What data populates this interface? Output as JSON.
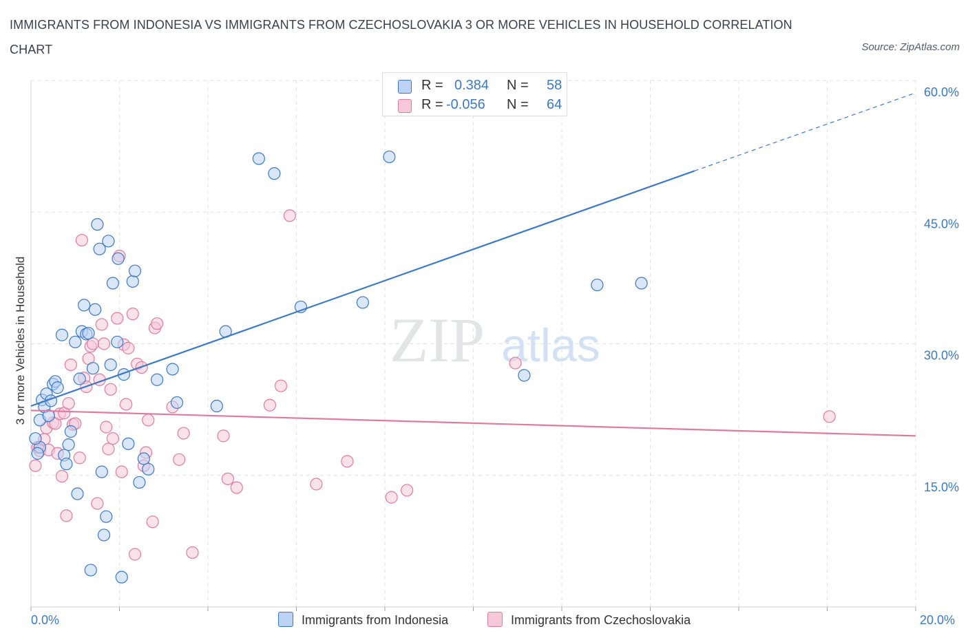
{
  "title": "IMMIGRANTS FROM INDONESIA VS IMMIGRANTS FROM CZECHOSLOVAKIA 3 OR MORE VEHICLES IN HOUSEHOLD CORRELATION CHART",
  "source": "Source: ZipAtlas.com",
  "watermark": {
    "zip": "ZIP",
    "atlas": "atlas"
  },
  "colors": {
    "blue": "#3a78c9",
    "blue_fill": "#bcd3f5",
    "pink": "#e07aa0",
    "pink_fill": "#f7c8d8",
    "grid": "#dfe1e5"
  },
  "legend": {
    "rows": [
      {
        "r_label": "R =",
        "r_value": "0.384",
        "n_label": "N =",
        "n_value": "58"
      },
      {
        "r_label": "R =",
        "r_value": "-0.056",
        "n_label": "N =",
        "n_value": "64"
      }
    ]
  },
  "chart_data": {
    "type": "scatter",
    "title": "IMMIGRANTS FROM INDONESIA VS IMMIGRANTS FROM CZECHOSLOVAKIA 3 OR MORE VEHICLES IN HOUSEHOLD CORRELATION CHART",
    "xlabel": "",
    "ylabel": "3 or more Vehicles in Household",
    "xlim": [
      0,
      20
    ],
    "ylim": [
      0,
      60
    ],
    "x_tick_labels": [
      "0.0%",
      "20.0%"
    ],
    "y_tick_labels": [
      {
        "value": 15,
        "label": "15.0%"
      },
      {
        "value": 30,
        "label": "30.0%"
      },
      {
        "value": 45,
        "label": "45.0%"
      },
      {
        "value": 60,
        "label": "60.0%"
      }
    ],
    "grid": true,
    "legend_position": "top-center",
    "series": [
      {
        "name": "Immigrants from Indonesia",
        "color": "#3a78c9",
        "r": 0.384,
        "n": 58,
        "trend": {
          "x0": 0,
          "y0": 22.9,
          "x1": 15.0,
          "y1": 49.7,
          "dashed_to_x": 20,
          "dashed_to_y": 58.6
        },
        "points": [
          [
            0.2,
            21.3
          ],
          [
            0.25,
            23.6
          ],
          [
            0.3,
            22.8
          ],
          [
            0.35,
            24.3
          ],
          [
            0.4,
            21.8
          ],
          [
            0.45,
            23.5
          ],
          [
            0.5,
            25.4
          ],
          [
            0.55,
            25.7
          ],
          [
            0.6,
            25.0
          ],
          [
            0.7,
            31.0
          ],
          [
            0.75,
            17.3
          ],
          [
            0.8,
            16.3
          ],
          [
            0.85,
            18.5
          ],
          [
            0.9,
            20.0
          ],
          [
            1.0,
            30.2
          ],
          [
            1.05,
            12.9
          ],
          [
            1.1,
            26.0
          ],
          [
            1.15,
            31.4
          ],
          [
            1.2,
            34.4
          ],
          [
            1.25,
            31.1
          ],
          [
            1.3,
            31.2
          ],
          [
            1.35,
            4.2
          ],
          [
            1.4,
            27.2
          ],
          [
            1.45,
            33.9
          ],
          [
            1.5,
            43.6
          ],
          [
            1.55,
            40.8
          ],
          [
            1.6,
            15.4
          ],
          [
            1.65,
            8.2
          ],
          [
            1.7,
            10.3
          ],
          [
            1.75,
            41.7
          ],
          [
            1.8,
            27.6
          ],
          [
            1.85,
            36.9
          ],
          [
            1.95,
            30.2
          ],
          [
            1.97,
            39.7
          ],
          [
            2.05,
            3.4
          ],
          [
            2.1,
            26.5
          ],
          [
            2.2,
            18.6
          ],
          [
            2.3,
            37.1
          ],
          [
            2.35,
            38.3
          ],
          [
            2.45,
            14.2
          ],
          [
            2.55,
            16.9
          ],
          [
            2.65,
            15.7
          ],
          [
            2.85,
            25.9
          ],
          [
            3.2,
            27.1
          ],
          [
            3.3,
            23.3
          ],
          [
            4.2,
            22.9
          ],
          [
            4.4,
            31.4
          ],
          [
            5.15,
            51.1
          ],
          [
            5.5,
            49.4
          ],
          [
            6.1,
            34.2
          ],
          [
            7.5,
            34.7
          ],
          [
            8.1,
            51.3
          ],
          [
            11.15,
            26.4
          ],
          [
            12.8,
            36.7
          ],
          [
            13.8,
            36.9
          ],
          [
            0.2,
            18.2
          ],
          [
            0.1,
            19.2
          ],
          [
            0.15,
            17.5
          ]
        ]
      },
      {
        "name": "Immigrants from Czechoslovakia",
        "color": "#e07aa0",
        "r": -0.056,
        "n": 64,
        "trend": {
          "x0": 0,
          "y0": 22.4,
          "x1": 20,
          "y1": 19.5
        },
        "points": [
          [
            0.1,
            16.1
          ],
          [
            0.15,
            18.2
          ],
          [
            0.2,
            17.8
          ],
          [
            0.3,
            19.1
          ],
          [
            0.35,
            20.4
          ],
          [
            0.4,
            17.9
          ],
          [
            0.5,
            21.0
          ],
          [
            0.55,
            20.9
          ],
          [
            0.6,
            17.5
          ],
          [
            0.65,
            22.0
          ],
          [
            0.7,
            14.9
          ],
          [
            0.75,
            22.1
          ],
          [
            0.8,
            10.4
          ],
          [
            0.85,
            23.2
          ],
          [
            0.9,
            27.6
          ],
          [
            0.95,
            20.8
          ],
          [
            1.0,
            20.9
          ],
          [
            1.1,
            17.0
          ],
          [
            1.15,
            41.8
          ],
          [
            1.2,
            26.1
          ],
          [
            1.25,
            25.1
          ],
          [
            1.3,
            28.3
          ],
          [
            1.35,
            29.7
          ],
          [
            1.4,
            30.0
          ],
          [
            1.5,
            11.8
          ],
          [
            1.55,
            25.9
          ],
          [
            1.6,
            32.2
          ],
          [
            1.65,
            30.0
          ],
          [
            1.7,
            20.5
          ],
          [
            1.75,
            18.0
          ],
          [
            1.8,
            24.8
          ],
          [
            1.85,
            19.2
          ],
          [
            1.95,
            32.9
          ],
          [
            2.0,
            40.0
          ],
          [
            2.05,
            15.4
          ],
          [
            2.1,
            29.9
          ],
          [
            2.15,
            23.1
          ],
          [
            2.2,
            29.5
          ],
          [
            2.3,
            33.4
          ],
          [
            2.35,
            6.0
          ],
          [
            2.4,
            27.7
          ],
          [
            2.5,
            27.3
          ],
          [
            2.55,
            16.1
          ],
          [
            2.6,
            17.6
          ],
          [
            2.65,
            21.3
          ],
          [
            2.75,
            9.7
          ],
          [
            2.8,
            31.8
          ],
          [
            2.85,
            32.3
          ],
          [
            3.2,
            22.8
          ],
          [
            3.35,
            16.8
          ],
          [
            3.45,
            19.8
          ],
          [
            3.65,
            6.2
          ],
          [
            4.35,
            19.5
          ],
          [
            4.45,
            14.6
          ],
          [
            4.65,
            13.6
          ],
          [
            5.4,
            23.0
          ],
          [
            5.65,
            25.2
          ],
          [
            5.85,
            44.6
          ],
          [
            6.45,
            14.0
          ],
          [
            7.15,
            16.6
          ],
          [
            8.15,
            12.5
          ],
          [
            8.5,
            13.3
          ],
          [
            10.95,
            27.8
          ],
          [
            18.05,
            21.7
          ]
        ]
      }
    ]
  }
}
